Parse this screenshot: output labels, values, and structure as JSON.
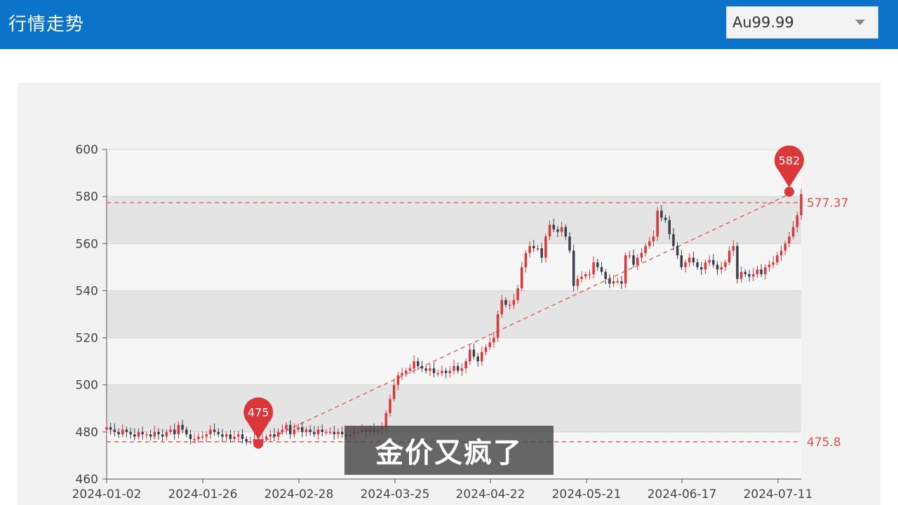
{
  "header": {
    "title": "行情走势"
  },
  "selector": {
    "value": "Au99.99"
  },
  "caption": "金价又疯了",
  "chart_data": {
    "type": "candlestick",
    "x_ticks": [
      "2024-01-02",
      "2024-01-26",
      "2024-02-28",
      "2024-03-25",
      "2024-04-22",
      "2024-05-21",
      "2024-06-17",
      "2024-07-11"
    ],
    "y_ticks": [
      460,
      480,
      500,
      520,
      540,
      560,
      580,
      600
    ],
    "ylim": [
      460,
      600
    ],
    "grid": true,
    "colors": {
      "up": "#d9373a",
      "down": "#3a3f4a",
      "ref": "#d9534f"
    },
    "reference_lines": [
      {
        "label": "577.37",
        "value": 577.37
      },
      {
        "label": "475.8",
        "value": 475.8
      }
    ],
    "markers": [
      {
        "label": "475",
        "date_index": 38,
        "value": 475
      },
      {
        "label": "582",
        "date_index": 171,
        "value": 582
      }
    ],
    "trendline": {
      "from": {
        "date_index": 38,
        "value": 475
      },
      "to": {
        "date_index": 171,
        "value": 581
      }
    },
    "closes": [
      482,
      481,
      480,
      479,
      481,
      480,
      479,
      478,
      480,
      479,
      479,
      478,
      480,
      479,
      478,
      480,
      481,
      479,
      483,
      481,
      479,
      477,
      477,
      478,
      478,
      479,
      481,
      480,
      479,
      478,
      479,
      477,
      478,
      479,
      477,
      476,
      476,
      477,
      476,
      477,
      478,
      479,
      478,
      480,
      481,
      483,
      479,
      481,
      482,
      480,
      481,
      480,
      479,
      481,
      480,
      480,
      480,
      479,
      480,
      479,
      478,
      479,
      480,
      480,
      481,
      480,
      481,
      480,
      481,
      482,
      488,
      494,
      500,
      504,
      505,
      506,
      507,
      510,
      508,
      507,
      506,
      507,
      505,
      505,
      506,
      505,
      506,
      508,
      506,
      507,
      510,
      515,
      512,
      510,
      514,
      516,
      518,
      520,
      530,
      536,
      534,
      534,
      536,
      541,
      550,
      556,
      559,
      558,
      558,
      554,
      563,
      568,
      566,
      565,
      567,
      563,
      557,
      542,
      545,
      546,
      547,
      547,
      552,
      550,
      548,
      545,
      543,
      544,
      544,
      543,
      555,
      555,
      551,
      554,
      556,
      559,
      561,
      563,
      574,
      571,
      570,
      564,
      559,
      555,
      550,
      552,
      554,
      552,
      550,
      549,
      552,
      553,
      551,
      549,
      550,
      552,
      557,
      559,
      545,
      548,
      547,
      546,
      547,
      549,
      547,
      550,
      551,
      552,
      555,
      557,
      560,
      563,
      567,
      572,
      581
    ]
  }
}
